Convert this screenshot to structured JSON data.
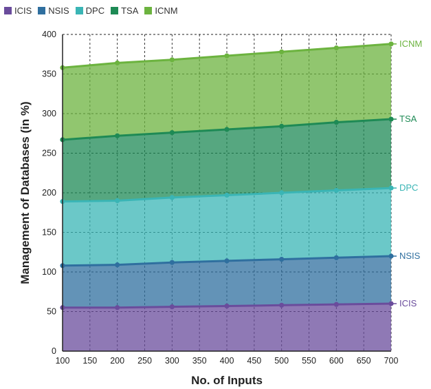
{
  "chart_data": {
    "type": "area",
    "stacked": true,
    "title": "",
    "xlabel": "No. of Inputs",
    "ylabel": "Management of Databases (in %)",
    "xlim": [
      100,
      700
    ],
    "ylim": [
      0,
      400
    ],
    "x_ticks": [
      100,
      150,
      200,
      250,
      300,
      350,
      400,
      450,
      500,
      550,
      600,
      650,
      700
    ],
    "y_ticks": [
      0,
      50,
      100,
      150,
      200,
      250,
      300,
      350,
      400
    ],
    "grid": true,
    "legend_position": "top-left",
    "x": [
      100,
      200,
      300,
      400,
      500,
      600,
      700
    ],
    "series": [
      {
        "name": "ICIS",
        "color": "#6a4c9c",
        "values": [
          55,
          55,
          56,
          57,
          58,
          59,
          60
        ],
        "cumulative": [
          55,
          55,
          56,
          57,
          58,
          59,
          60
        ]
      },
      {
        "name": "NSIS",
        "color": "#2f6f9f",
        "values": [
          53,
          54,
          56,
          57,
          58,
          59,
          60
        ],
        "cumulative": [
          108,
          109,
          112,
          114,
          116,
          118,
          120
        ]
      },
      {
        "name": "DPC",
        "color": "#3ab5b5",
        "values": [
          81,
          81,
          82,
          83,
          84,
          85,
          86
        ],
        "cumulative": [
          189,
          190,
          194,
          197,
          200,
          203,
          206
        ]
      },
      {
        "name": "TSA",
        "color": "#1e8a55",
        "values": [
          78,
          82,
          82,
          83,
          84,
          86,
          87
        ],
        "cumulative": [
          267,
          272,
          276,
          280,
          284,
          289,
          293
        ]
      },
      {
        "name": "ICNM",
        "color": "#6cb33f",
        "values": [
          91,
          92,
          92,
          93,
          94,
          94,
          95
        ],
        "cumulative": [
          358,
          364,
          368,
          373,
          378,
          383,
          388
        ]
      }
    ]
  }
}
